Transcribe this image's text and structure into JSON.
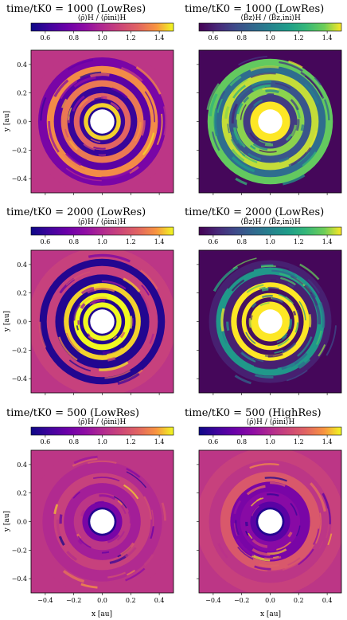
{
  "chart_data": [
    {
      "type": "heatmap",
      "title": "time/tK0 = 1000 (LowRes)",
      "colorbar_label": "⟨ρ̄⟩H / ⟨ρ̄ini⟩H",
      "colormap": "plasma",
      "colorbar_ticks": [
        "0.6",
        "0.8",
        "1.0",
        "1.2",
        "1.4"
      ],
      "colorbar_range": [
        0.5,
        1.5
      ],
      "xlim": [
        -0.5,
        0.5
      ],
      "ylim": [
        -0.5,
        0.5
      ],
      "y_ticks": [
        "0.4",
        "0.2",
        "0.0",
        "−0.2",
        "−0.4"
      ],
      "ylabel": "y [au]",
      "rings": [
        {
          "r": 0.1,
          "level": 0.05
        },
        {
          "r": 0.13,
          "level": 0.95
        },
        {
          "r": 0.16,
          "level": 0.1
        },
        {
          "r": 0.2,
          "level": 0.75
        },
        {
          "r": 0.245,
          "level": 0.1
        },
        {
          "r": 0.29,
          "level": 0.8
        },
        {
          "r": 0.34,
          "level": 0.2
        },
        {
          "r": 0.39,
          "level": 0.85
        },
        {
          "r": 0.45,
          "level": 0.3
        },
        {
          "r": 0.52,
          "level": 0.55
        }
      ]
    },
    {
      "type": "heatmap",
      "title": "time/tK0 = 1000 (LowRes)",
      "colorbar_label": "⟨B̄z⟩H / ⟨B̄z,ini⟩H",
      "colormap": "viridis",
      "colorbar_ticks": [
        "0.6",
        "0.8",
        "1.0",
        "1.2",
        "1.4"
      ],
      "colorbar_range": [
        0.5,
        1.5
      ],
      "xlim": [
        -0.5,
        0.5
      ],
      "ylim": [
        -0.5,
        0.5
      ],
      "rings": [
        {
          "r": 0.14,
          "level": 1.0
        },
        {
          "r": 0.19,
          "level": 0.2
        },
        {
          "r": 0.24,
          "level": 0.9
        },
        {
          "r": 0.29,
          "level": 0.3
        },
        {
          "r": 0.34,
          "level": 0.95
        },
        {
          "r": 0.39,
          "level": 0.4
        },
        {
          "r": 0.44,
          "level": 0.85
        }
      ]
    },
    {
      "type": "heatmap",
      "title": "time/tK0 = 2000 (LowRes)",
      "colorbar_label": "⟨ρ̄⟩H / ⟨ρ̄ini⟩H",
      "colormap": "plasma",
      "colorbar_ticks": [
        "0.6",
        "0.8",
        "1.0",
        "1.2",
        "1.4"
      ],
      "colorbar_range": [
        0.5,
        1.5
      ],
      "xlim": [
        -0.5,
        0.5
      ],
      "ylim": [
        -0.5,
        0.5
      ],
      "y_ticks": [
        "0.4",
        "0.2",
        "0.0",
        "−0.2",
        "−0.4"
      ],
      "ylabel": "y [au]",
      "rings": [
        {
          "r": 0.1,
          "level": 0.05
        },
        {
          "r": 0.135,
          "level": 1.0
        },
        {
          "r": 0.16,
          "level": 0.05
        },
        {
          "r": 0.2,
          "level": 1.0
        },
        {
          "r": 0.235,
          "level": 0.05
        },
        {
          "r": 0.27,
          "level": 0.95
        },
        {
          "r": 0.33,
          "level": 0.05
        },
        {
          "r": 0.39,
          "level": 0.6
        },
        {
          "r": 0.44,
          "level": 0.05
        },
        {
          "r": 0.52,
          "level": 0.6
        }
      ]
    },
    {
      "type": "heatmap",
      "title": "time/tK0 = 2000 (LowRes)",
      "colorbar_label": "⟨B̄z⟩H / ⟨B̄z,ini⟩H",
      "colormap": "viridis",
      "colorbar_ticks": [
        "0.6",
        "0.8",
        "1.0",
        "1.2",
        "1.4"
      ],
      "colorbar_range": [
        0.5,
        1.5
      ],
      "xlim": [
        -0.5,
        0.5
      ],
      "ylim": [
        -0.5,
        0.5
      ],
      "rings": [
        {
          "r": 0.14,
          "level": 1.0
        },
        {
          "r": 0.17,
          "level": 0.05
        },
        {
          "r": 0.2,
          "level": 1.0
        },
        {
          "r": 0.235,
          "level": 0.05
        },
        {
          "r": 0.275,
          "level": 1.0
        },
        {
          "r": 0.33,
          "level": 0.1
        },
        {
          "r": 0.38,
          "level": 0.6
        },
        {
          "r": 0.43,
          "level": 0.1
        }
      ]
    },
    {
      "type": "heatmap",
      "title": "time/tK0 = 500 (LowRes)",
      "colorbar_label": "⟨ρ̄⟩H / ⟨ρ̄ini⟩H",
      "colormap": "plasma",
      "colorbar_ticks": [
        "0.6",
        "0.8",
        "1.0",
        "1.2",
        "1.4"
      ],
      "colorbar_range": [
        0.5,
        1.5
      ],
      "xlim": [
        -0.5,
        0.5
      ],
      "ylim": [
        -0.5,
        0.5
      ],
      "x_ticks": [
        "−0.4",
        "−0.2",
        "0.0",
        "0.2",
        "0.4"
      ],
      "y_ticks": [
        "0.4",
        "0.2",
        "0.0",
        "−0.2",
        "−0.4"
      ],
      "xlabel": "x [au]",
      "ylabel": "y [au]",
      "rings": [
        {
          "r": 0.1,
          "level": 0.05
        },
        {
          "r": 0.14,
          "level": 0.3
        },
        {
          "r": 0.2,
          "level": 0.55
        },
        {
          "r": 0.27,
          "level": 0.45
        },
        {
          "r": 0.34,
          "level": 0.6
        },
        {
          "r": 0.42,
          "level": 0.5
        },
        {
          "r": 0.52,
          "level": 0.55
        }
      ]
    },
    {
      "type": "heatmap",
      "title": "time/tK0 = 500 (HighRes)",
      "colorbar_label": "⟨ρ̄⟩H / ⟨ρ̄ini⟩H",
      "colormap": "plasma",
      "colorbar_ticks": [
        "0.6",
        "0.8",
        "1.0",
        "1.2",
        "1.4"
      ],
      "colorbar_range": [
        0.5,
        1.5
      ],
      "xlim": [
        -0.5,
        0.5
      ],
      "ylim": [
        -0.5,
        0.5
      ],
      "x_ticks": [
        "−0.4",
        "−0.2",
        "0.0",
        "0.2",
        "0.4"
      ],
      "xlabel": "x [au]",
      "rings": [
        {
          "r": 0.1,
          "level": 0.05
        },
        {
          "r": 0.14,
          "level": 0.2
        },
        {
          "r": 0.21,
          "level": 0.35
        },
        {
          "r": 0.28,
          "level": 0.3
        },
        {
          "r": 0.35,
          "level": 0.7
        },
        {
          "r": 0.43,
          "level": 0.55
        },
        {
          "r": 0.52,
          "level": 0.6
        }
      ]
    }
  ]
}
